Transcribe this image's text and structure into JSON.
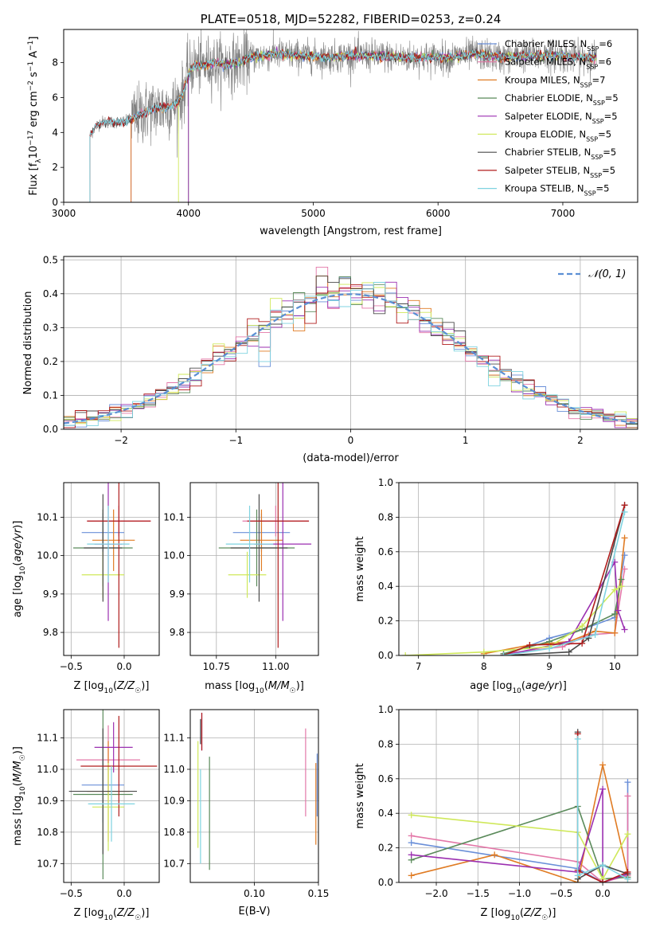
{
  "colors": {
    "Chabrier MILES": "#6a8fd8",
    "Salpeter MILES": "#e377a8",
    "Kroupa MILES": "#e07b23",
    "Chabrier ELODIE": "#5a8a5a",
    "Salpeter ELODIE": "#9b2fb0",
    "Kroupa ELODIE": "#cfe85a",
    "Chabrier STELIB": "#4a4a4a",
    "Salpeter STELIB": "#b01c1c",
    "Kroupa STELIB": "#7fd3e0"
  },
  "chart_data": [
    {
      "id": "spectrum",
      "type": "line",
      "title": "PLATE=0518, MJD=52282, FIBERID=0253, z=0.24",
      "xlabel": "wavelength [Angstrom, rest frame]",
      "ylabel": "Flux [f_λ 10^-17 erg cm^-2 s^-1 A^-1]",
      "xlim": [
        3000,
        7600
      ],
      "ylim": [
        0,
        9.9
      ],
      "xticks": [
        3000,
        4000,
        5000,
        6000,
        7000
      ],
      "yticks": [
        0,
        2,
        4,
        6,
        8
      ],
      "grid": false,
      "legend_position": "upper-right",
      "observed_flux_color": "#808080",
      "observed_wavelength_range": [
        3210,
        7270
      ],
      "flux_profile": {
        "wavelength": [
          3210,
          3250,
          3300,
          3400,
          3500,
          3600,
          3700,
          3800,
          3900,
          3950,
          4000,
          4050,
          4100,
          4200,
          4300,
          4400,
          4500,
          4700,
          4900,
          5100,
          5300,
          5500,
          5700,
          5900,
          6100,
          6300,
          6500,
          6700,
          6900,
          7100,
          7270
        ],
        "flux": [
          3.8,
          4.3,
          4.6,
          4.6,
          4.6,
          5.0,
          5.3,
          5.4,
          5.6,
          6.1,
          7.4,
          7.9,
          7.8,
          8.0,
          7.9,
          8.0,
          8.3,
          8.5,
          8.4,
          8.3,
          8.4,
          8.4,
          8.3,
          8.3,
          8.3,
          8.5,
          8.3,
          8.4,
          8.4,
          8.3,
          8.3
        ]
      },
      "model_start_wavelength": {
        "Chabrier MILES": 3540,
        "Salpeter MILES": 3540,
        "Kroupa MILES": 3540,
        "Chabrier ELODIE": 4000,
        "Salpeter ELODIE": 4000,
        "Kroupa ELODIE": 3920,
        "Chabrier STELIB": 3210,
        "Salpeter STELIB": 3210,
        "Kroupa STELIB": 3210
      },
      "legend": [
        {
          "model": "Chabrier MILES",
          "label": "Chabrier MILES, N",
          "sub": "SSP",
          "suffix": "=6"
        },
        {
          "model": "Salpeter MILES",
          "label": "Salpeter MILES, N",
          "sub": "SSP",
          "suffix": "=6"
        },
        {
          "model": "Kroupa MILES",
          "label": "Kroupa MILES, N",
          "sub": "SSP",
          "suffix": "=7"
        },
        {
          "model": "Chabrier ELODIE",
          "label": "Chabrier ELODIE, N",
          "sub": "SSP",
          "suffix": "=5"
        },
        {
          "model": "Salpeter ELODIE",
          "label": "Salpeter ELODIE, N",
          "sub": "SSP",
          "suffix": "=5"
        },
        {
          "model": "Kroupa ELODIE",
          "label": "Kroupa ELODIE, N",
          "sub": "SSP",
          "suffix": "=5"
        },
        {
          "model": "Chabrier STELIB",
          "label": "Chabrier STELIB, N",
          "sub": "SSP",
          "suffix": "=5"
        },
        {
          "model": "Salpeter STELIB",
          "label": "Salpeter STELIB, N",
          "sub": "SSP",
          "suffix": "=5"
        },
        {
          "model": "Kroupa STELIB",
          "label": "Kroupa STELIB, N",
          "sub": "SSP",
          "suffix": "=5"
        }
      ]
    },
    {
      "id": "residuals",
      "type": "histogram",
      "xlabel": "(data-model)/error",
      "ylabel": "Normed distribution",
      "xlim": [
        -2.5,
        2.5
      ],
      "ylim": [
        0,
        0.51
      ],
      "xticks": [
        -2,
        -1,
        0,
        1,
        2
      ],
      "yticks": [
        0.0,
        0.1,
        0.2,
        0.3,
        0.4,
        0.5
      ],
      "grid": true,
      "bin_width": 0.1,
      "bin_start": -2.5,
      "reference_curve": {
        "label": "𝒩(0, 1)",
        "mean": 0,
        "sigma": 1,
        "color": "#5b8fd4",
        "style": "dashed"
      },
      "legend_position": "upper-right",
      "spike_bins": {
        "-0.3": 0.48,
        "-0.4": 0.38,
        "-0.2": 0.36,
        "0.3": 0.38,
        "0.7": 0.3,
        "-0.8": 0.2
      }
    },
    {
      "id": "age_vs_Z",
      "type": "errorbar",
      "xlabel": "Z [log10(Z/Z☉)]",
      "ylabel": "age [log10(age/yr)]",
      "xlim": [
        -0.57,
        0.33
      ],
      "ylim": [
        9.74,
        10.19
      ],
      "xticks": [
        -0.5,
        0.0
      ],
      "yticks": [
        9.8,
        9.9,
        10.0,
        10.1
      ],
      "grid": true,
      "points": [
        {
          "model": "Chabrier MILES",
          "x": -0.2,
          "xerr": 0.2,
          "y": 10.06,
          "yerr": 0.05
        },
        {
          "model": "Salpeter MILES",
          "x": -0.05,
          "xerr": 0.3,
          "y": 10.09,
          "yerr": 0.04
        },
        {
          "model": "Kroupa MILES",
          "x": -0.1,
          "xerr": 0.2,
          "y": 10.04,
          "yerr": 0.08
        },
        {
          "model": "Chabrier ELODIE",
          "x": -0.2,
          "xerr": 0.28,
          "y": 10.02,
          "yerr": 0.1
        },
        {
          "model": "Salpeter ELODIE",
          "x": -0.15,
          "xerr": 0.13,
          "y": 10.03,
          "yerr": 0.2
        },
        {
          "model": "Kroupa ELODIE",
          "x": -0.2,
          "xerr": 0.2,
          "y": 9.95,
          "yerr": 0.06
        },
        {
          "model": "Chabrier STELIB",
          "x": -0.2,
          "xerr": 0.18,
          "y": 10.02,
          "yerr": 0.14
        },
        {
          "model": "Salpeter STELIB",
          "x": -0.05,
          "xerr": 0.3,
          "y": 10.09,
          "yerr": 0.33
        },
        {
          "model": "Kroupa STELIB",
          "x": -0.15,
          "xerr": 0.2,
          "y": 10.03,
          "yerr": 0.1
        }
      ]
    },
    {
      "id": "age_vs_mass",
      "type": "errorbar",
      "xlabel": "mass [log10(M/M☉)]",
      "ylabel": "",
      "xlim": [
        10.64,
        11.18
      ],
      "ylim": [
        9.74,
        10.19
      ],
      "xticks": [
        10.75,
        11.0
      ],
      "yticks": [
        9.8,
        9.9,
        10.0,
        10.1
      ],
      "grid": true,
      "points": [
        {
          "model": "Chabrier MILES",
          "x": 10.94,
          "xerr": 0.12,
          "y": 10.06,
          "yerr": 0.05
        },
        {
          "model": "Salpeter MILES",
          "x": 11.0,
          "xerr": 0.14,
          "y": 10.09,
          "yerr": 0.04
        },
        {
          "model": "Kroupa MILES",
          "x": 10.94,
          "xerr": 0.09,
          "y": 10.04,
          "yerr": 0.08
        },
        {
          "model": "Chabrier ELODIE",
          "x": 10.92,
          "xerr": 0.16,
          "y": 10.02,
          "yerr": 0.1
        },
        {
          "model": "Salpeter ELODIE",
          "x": 11.03,
          "xerr": 0.12,
          "y": 10.03,
          "yerr": 0.2
        },
        {
          "model": "Kroupa ELODIE",
          "x": 10.88,
          "xerr": 0.08,
          "y": 9.95,
          "yerr": 0.06
        },
        {
          "model": "Chabrier STELIB",
          "x": 10.93,
          "xerr": 0.12,
          "y": 10.02,
          "yerr": 0.14
        },
        {
          "model": "Salpeter STELIB",
          "x": 11.01,
          "xerr": 0.13,
          "y": 10.09,
          "yerr": 0.33
        },
        {
          "model": "Kroupa STELIB",
          "x": 10.89,
          "xerr": 0.1,
          "y": 10.03,
          "yerr": 0.1
        }
      ]
    },
    {
      "id": "massweight_vs_age",
      "type": "line",
      "xlabel": "age [log10(age/yr)]",
      "ylabel": "mass weight",
      "xlim": [
        6.7,
        10.35
      ],
      "ylim": [
        0,
        1.0
      ],
      "xticks": [
        7,
        8,
        9,
        10
      ],
      "yticks": [
        0.0,
        0.2,
        0.4,
        0.6,
        0.8,
        1.0
      ],
      "grid": true,
      "marker": "+",
      "series": [
        {
          "model": "Chabrier MILES",
          "x": [
            8.3,
            9.0,
            9.5,
            10.0,
            10.15
          ],
          "y": [
            0.0,
            0.1,
            0.15,
            0.22,
            0.58
          ]
        },
        {
          "model": "Salpeter MILES",
          "x": [
            8.3,
            9.2,
            9.6,
            10.0,
            10.15
          ],
          "y": [
            0.01,
            0.05,
            0.12,
            0.13,
            0.5
          ]
        },
        {
          "model": "Kroupa MILES",
          "x": [
            8.0,
            8.7,
            9.3,
            9.7,
            10.0,
            10.15
          ],
          "y": [
            0.01,
            0.06,
            0.08,
            0.14,
            0.13,
            0.68
          ]
        },
        {
          "model": "Chabrier ELODIE",
          "x": [
            8.3,
            9.0,
            9.5,
            10.0,
            10.1
          ],
          "y": [
            0.01,
            0.08,
            0.15,
            0.24,
            0.44
          ]
        },
        {
          "model": "Salpeter ELODIE",
          "x": [
            8.3,
            9.3,
            10.0,
            10.05,
            10.15
          ],
          "y": [
            0.0,
            0.08,
            0.54,
            0.26,
            0.15
          ]
        },
        {
          "model": "Kroupa ELODIE",
          "x": [
            6.8,
            8.0,
            9.0,
            9.5,
            10.0,
            10.1
          ],
          "y": [
            0.0,
            0.02,
            0.05,
            0.17,
            0.38,
            0.4
          ]
        },
        {
          "model": "Chabrier STELIB",
          "x": [
            8.3,
            9.3,
            9.6,
            10.15
          ],
          "y": [
            0.0,
            0.02,
            0.1,
            0.87
          ]
        },
        {
          "model": "Salpeter STELIB",
          "x": [
            8.3,
            8.7,
            9.5,
            10.15
          ],
          "y": [
            0.0,
            0.06,
            0.07,
            0.87
          ]
        },
        {
          "model": "Kroupa STELIB",
          "x": [
            8.3,
            9.0,
            9.7,
            10.15
          ],
          "y": [
            0.0,
            0.04,
            0.12,
            0.83
          ]
        }
      ]
    },
    {
      "id": "mass_vs_Z",
      "type": "errorbar",
      "xlabel": "Z [log10(Z/Z☉)]",
      "ylabel": "mass [log10(M/M☉)]",
      "xlim": [
        -0.57,
        0.33
      ],
      "ylim": [
        10.64,
        11.19
      ],
      "xticks": [
        -0.5,
        0.0
      ],
      "yticks": [
        10.7,
        10.8,
        10.9,
        11.0,
        11.1
      ],
      "grid": true,
      "points": [
        {
          "model": "Chabrier MILES",
          "x": -0.2,
          "xerr": 0.2,
          "y": 10.95,
          "yerr": 0.12
        },
        {
          "model": "Salpeter MILES",
          "x": -0.15,
          "xerr": 0.3,
          "y": 11.03,
          "yerr": 0.11
        },
        {
          "model": "Kroupa MILES",
          "x": -0.15,
          "xerr": 0.2,
          "y": 10.93,
          "yerr": 0.16
        },
        {
          "model": "Chabrier ELODIE",
          "x": -0.2,
          "xerr": 0.28,
          "y": 10.92,
          "yerr": 0.27
        },
        {
          "model": "Salpeter ELODIE",
          "x": -0.1,
          "xerr": 0.18,
          "y": 11.07,
          "yerr": 0.08
        },
        {
          "model": "Kroupa ELODIE",
          "x": -0.15,
          "xerr": 0.15,
          "y": 10.88,
          "yerr": 0.14
        },
        {
          "model": "Chabrier STELIB",
          "x": -0.2,
          "xerr": 0.32,
          "y": 10.93,
          "yerr": 0.2
        },
        {
          "model": "Salpeter STELIB",
          "x": -0.05,
          "xerr": 0.36,
          "y": 11.01,
          "yerr": 0.16
        },
        {
          "model": "Kroupa STELIB",
          "x": -0.12,
          "xerr": 0.22,
          "y": 10.89,
          "yerr": 0.12
        }
      ]
    },
    {
      "id": "mass_vs_EBV",
      "type": "errorbar",
      "xlabel": "E(B-V)",
      "ylabel": "",
      "xlim": [
        0.05,
        0.15
      ],
      "ylim": [
        10.64,
        11.19
      ],
      "xticks": [
        0.1,
        0.15
      ],
      "yticks": [
        10.7,
        10.8,
        10.9,
        11.0,
        11.1
      ],
      "grid": true,
      "points": [
        {
          "model": "Chabrier MILES",
          "x": 0.149,
          "xerr": 0,
          "y": 10.95,
          "yerr": 0.1
        },
        {
          "model": "Salpeter MILES",
          "x": 0.14,
          "xerr": 0,
          "y": 10.99,
          "yerr": 0.14
        },
        {
          "model": "Kroupa MILES",
          "x": 0.148,
          "xerr": 0,
          "y": 10.89,
          "yerr": 0.13
        },
        {
          "model": "Chabrier ELODIE",
          "x": 0.065,
          "xerr": 0,
          "y": 10.86,
          "yerr": 0.18
        },
        {
          "model": "Salpeter ELODIE",
          "x": 0.059,
          "xerr": 0,
          "y": 11.12,
          "yerr": 0.06
        },
        {
          "model": "Kroupa ELODIE",
          "x": 0.056,
          "xerr": 0,
          "y": 10.92,
          "yerr": 0.17
        },
        {
          "model": "Chabrier STELIB",
          "x": 0.058,
          "xerr": 0,
          "y": 11.12,
          "yerr": 0.04
        },
        {
          "model": "Salpeter STELIB",
          "x": 0.059,
          "xerr": 0,
          "y": 11.12,
          "yerr": 0.06
        },
        {
          "model": "Kroupa STELIB",
          "x": 0.058,
          "xerr": 0,
          "y": 10.85,
          "yerr": 0.15
        }
      ]
    },
    {
      "id": "massweight_vs_Z",
      "type": "line",
      "xlabel": "Z [log10(Z/Z☉)]",
      "ylabel": "mass weight",
      "xlim": [
        -2.45,
        0.42
      ],
      "ylim": [
        0,
        1.0
      ],
      "xticks": [
        -2.0,
        -1.5,
        -1.0,
        -0.5,
        0.0
      ],
      "yticks": [
        0.0,
        0.2,
        0.4,
        0.6,
        0.8,
        1.0
      ],
      "grid": true,
      "marker": "+",
      "series": [
        {
          "model": "Chabrier MILES",
          "x": [
            -2.3,
            -0.3,
            0.0,
            0.3,
            0.3
          ],
          "y": [
            0.23,
            0.08,
            0.0,
            0.05,
            0.58
          ]
        },
        {
          "model": "Salpeter MILES",
          "x": [
            -2.3,
            -0.3,
            0.0,
            0.3,
            0.3
          ],
          "y": [
            0.27,
            0.12,
            0.0,
            0.04,
            0.5
          ]
        },
        {
          "model": "Kroupa MILES",
          "x": [
            -2.3,
            -1.3,
            -0.3,
            0.0,
            0.3,
            0.3
          ],
          "y": [
            0.04,
            0.16,
            0.0,
            0.68,
            0.05,
            0.02
          ]
        },
        {
          "model": "Chabrier ELODIE",
          "x": [
            -2.3,
            -0.3,
            0.0,
            0.3
          ],
          "y": [
            0.13,
            0.44,
            0.02,
            0.03
          ]
        },
        {
          "model": "Salpeter ELODIE",
          "x": [
            -2.3,
            -0.3,
            0.0,
            0.0,
            0.3
          ],
          "y": [
            0.16,
            0.06,
            0.54,
            0.0,
            0.05
          ]
        },
        {
          "model": "Kroupa ELODIE",
          "x": [
            -2.3,
            -0.3,
            0.0,
            0.3
          ],
          "y": [
            0.39,
            0.29,
            0.02,
            0.28
          ]
        },
        {
          "model": "Chabrier STELIB",
          "x": [
            -0.3,
            -0.3,
            0.0,
            0.3
          ],
          "y": [
            0.87,
            0.02,
            0.1,
            0.05
          ]
        },
        {
          "model": "Salpeter STELIB",
          "x": [
            -0.3,
            -0.3,
            0.0,
            0.3
          ],
          "y": [
            0.86,
            0.07,
            0.0,
            0.06
          ]
        },
        {
          "model": "Kroupa STELIB",
          "x": [
            -0.3,
            -0.3,
            0.0,
            0.3
          ],
          "y": [
            0.83,
            0.04,
            0.1,
            0.02
          ]
        }
      ]
    }
  ]
}
